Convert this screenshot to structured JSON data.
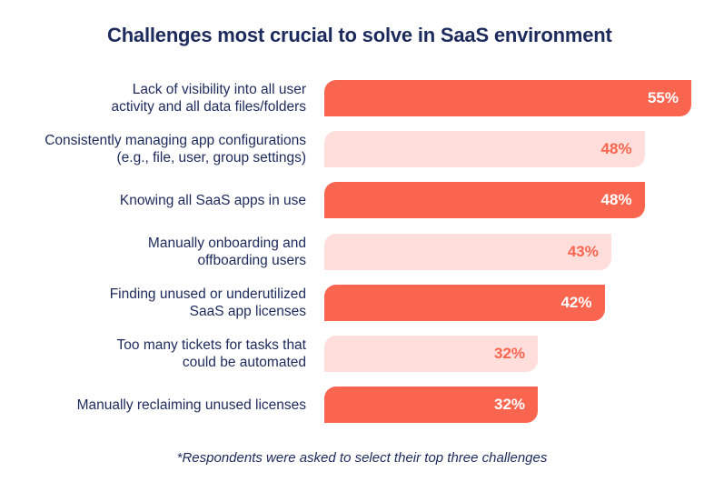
{
  "chart_data": {
    "type": "bar",
    "orientation": "horizontal",
    "title": "Challenges most crucial to solve in SaaS environment",
    "categories": [
      "Lack of visibility into all user\nactivity and all data files/folders",
      "Consistently managing app configurations\n(e.g., file, user, group settings)",
      "Knowing all SaaS apps in use",
      "Manually onboarding and\noffboarding users",
      "Finding unused or underutilized\nSaaS app licenses",
      "Too many tickets for tasks that\ncould be automated",
      "Manually reclaiming unused licenses"
    ],
    "values": [
      55,
      48,
      48,
      43,
      42,
      32,
      32
    ],
    "value_labels": [
      "55%",
      "48%",
      "48%",
      "43%",
      "42%",
      "32%",
      "32%"
    ],
    "unit": "%",
    "xlim": [
      0,
      55
    ],
    "grid": false,
    "footnote": "*Respondents were asked to select their top three challenges"
  },
  "colors": {
    "strong": "#f9654f",
    "light": "#ffdedb",
    "text": "#1c2a5c"
  }
}
